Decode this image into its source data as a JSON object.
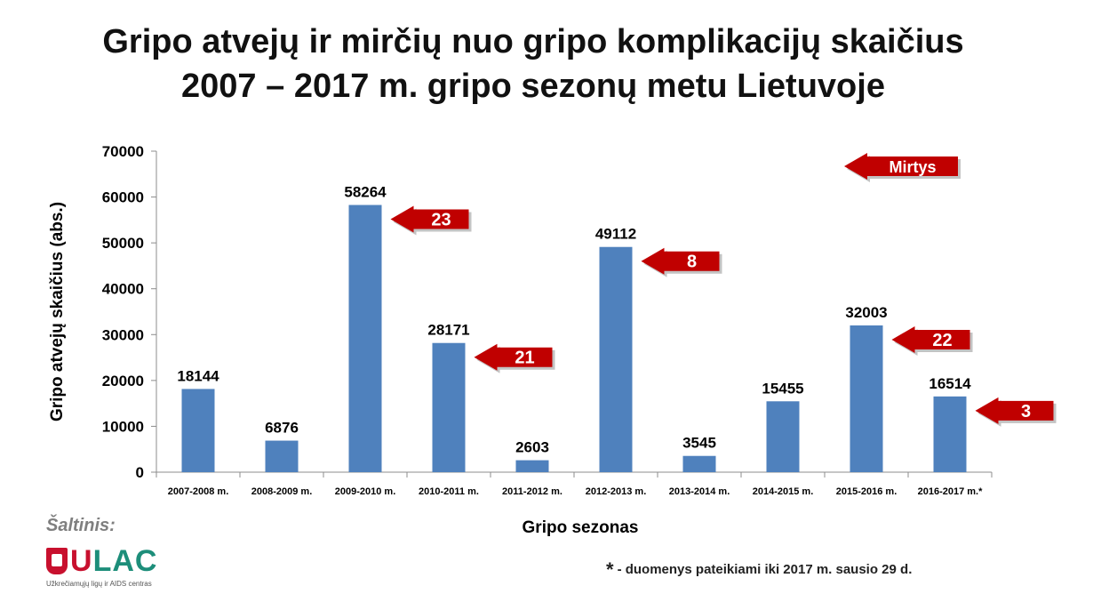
{
  "title": {
    "line1": "Gripo atvejų ir mirčių nuo gripo komplikacijų skaičius",
    "line2": "2007 – 2017 m. gripo sezonų metu Lietuvoje"
  },
  "chart_data": {
    "type": "bar",
    "categories": [
      "2007-2008 m.",
      "2008-2009 m.",
      "2009-2010 m.",
      "2010-2011 m.",
      "2011-2012 m.",
      "2012-2013 m.",
      "2013-2014 m.",
      "2014-2015 m.",
      "2015-2016 m.",
      "2016-2017 m.*"
    ],
    "values": [
      18144,
      6876,
      58264,
      28171,
      2603,
      49112,
      3545,
      15455,
      32003,
      16514
    ],
    "deaths": [
      {
        "category": "2009-2010 m.",
        "value": "23"
      },
      {
        "category": "2010-2011 m.",
        "value": "21"
      },
      {
        "category": "2012-2013 m.",
        "value": "8"
      },
      {
        "category": "2015-2016 m.",
        "value": "22"
      },
      {
        "category": "2016-2017 m.*",
        "value": "3"
      }
    ],
    "legend_arrow_label": "Mirtys",
    "legend_placement": "top-right",
    "xlabel": "Gripo sezonas",
    "ylabel": "Gripo atvejų skaičius (abs.)",
    "ylim": [
      0,
      70000
    ],
    "yticks": [
      0,
      10000,
      20000,
      30000,
      40000,
      50000,
      60000,
      70000
    ],
    "grid": false,
    "bar_color": "#4f81bd",
    "arrow_color": "#c00000"
  },
  "source": {
    "label": "Šaltinis:"
  },
  "logo": {
    "mark": "U",
    "text": "LAC",
    "subtitle": "Užkrečiamųjų ligų ir AIDS centras"
  },
  "footnote": {
    "star": "*",
    "text": "- duomenys pateikiami iki 2017 m. sausio 29 d."
  }
}
